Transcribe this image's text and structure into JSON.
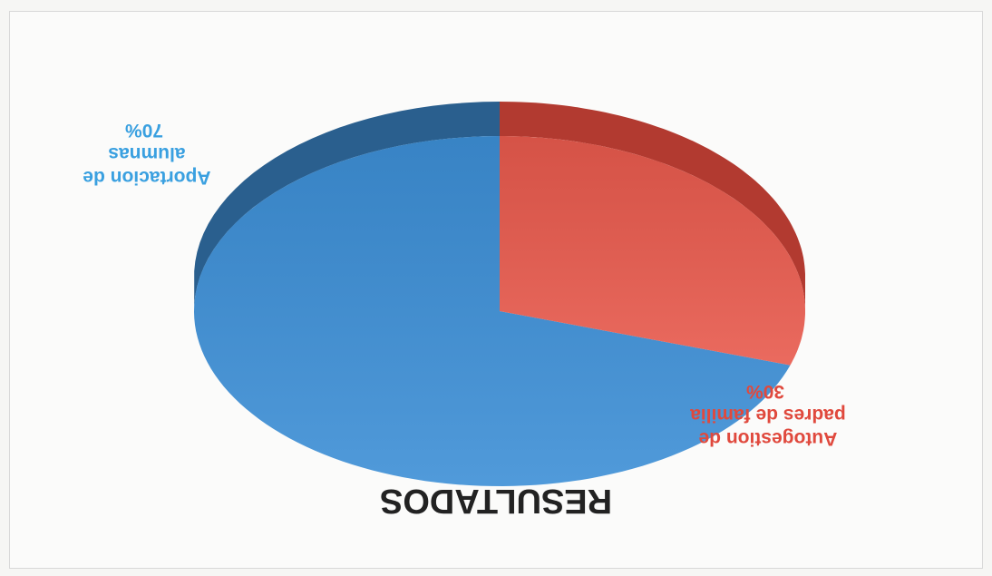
{
  "colors": {
    "aportacion": "#3d8fd6",
    "aportacion_side": "#2a5f8e",
    "autogestion": "#e85a4d",
    "autogestion_side": "#b23a30",
    "title": "#222222",
    "label_aportacion": "#3aa0e0",
    "label_autogestion": "#e0493d"
  },
  "chart_data": {
    "type": "pie",
    "title": "RESULTADOS",
    "orientation": "rotated 180 degrees (upside down)",
    "style": "3d",
    "categories": [
      "Aportacion de alumnas",
      "Autogestion de padres de familia"
    ],
    "values": [
      70,
      30
    ],
    "data_labels": [
      {
        "lines": [
          "Aportacion de",
          "alumnas",
          "70%"
        ]
      },
      {
        "lines": [
          "Autogestion de",
          "padres de familia",
          "30%"
        ]
      }
    ]
  }
}
